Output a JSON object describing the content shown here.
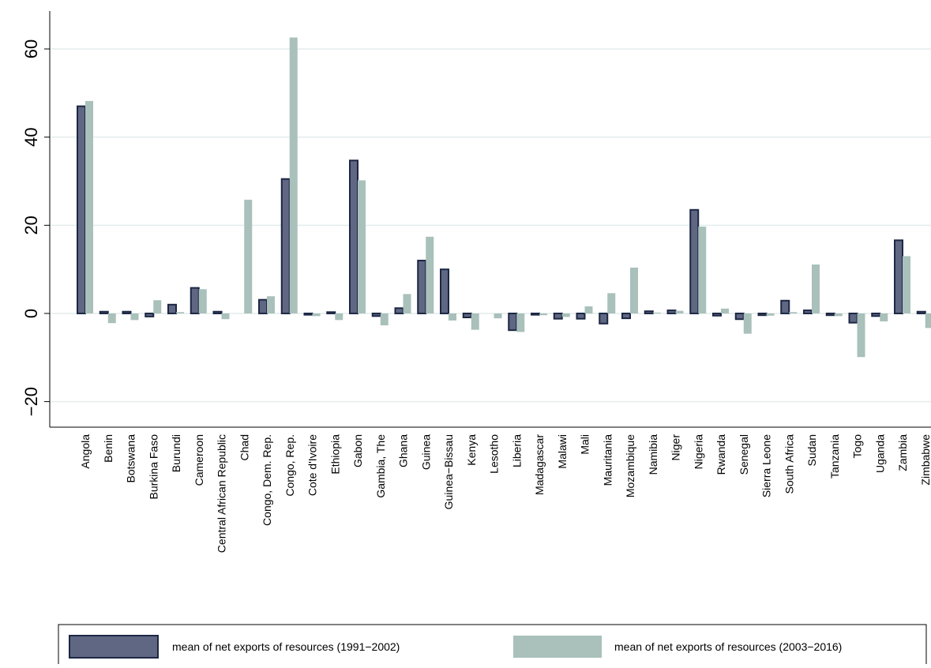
{
  "chart_data": {
    "type": "bar",
    "categories": [
      "Angola",
      "Benin",
      "Botswana",
      "Burkina Faso",
      "Burundi",
      "Cameroon",
      "Central African Republic",
      "Chad",
      "Congo, Dem. Rep.",
      "Congo, Rep.",
      "Cote d'Ivoire",
      "Ethiopia",
      "Gabon",
      "Gambia, The",
      "Ghana",
      "Guinea",
      "Guinea−Bissau",
      "Kenya",
      "Lesotho",
      "Liberia",
      "Madagascar",
      "Malawi",
      "Mali",
      "Mauritania",
      "Mozambique",
      "Namibia",
      "Niger",
      "Nigeria",
      "Rwanda",
      "Senegal",
      "Sierra Leone",
      "South Africa",
      "Sudan",
      "Tanzania",
      "Togo",
      "Uganda",
      "Zambia",
      "Zimbabwe"
    ],
    "series": [
      {
        "name": "mean of net exports of resources (1991−2002)",
        "color": "#5f6782",
        "values": [
          47,
          0.4,
          0.4,
          -0.7,
          2,
          5.8,
          0.4,
          null,
          3.1,
          30.5,
          -0.3,
          0.3,
          34.7,
          -0.6,
          1.2,
          12,
          10,
          -0.9,
          null,
          -3.8,
          -0.3,
          -1.2,
          -1.2,
          -2.3,
          -1.1,
          0.5,
          0.7,
          23.5,
          -0.5,
          -1.3,
          -0.4,
          2.9,
          0.7,
          -0.4,
          -2.1,
          -0.6,
          16.6,
          0.4
        ]
      },
      {
        "name": "mean of net exports of resources (2003−2016)",
        "color": "#a9c0bb",
        "values": [
          48.2,
          -2.2,
          -1.5,
          3,
          0.3,
          5.5,
          -1.3,
          25.8,
          3.9,
          62.6,
          -0.6,
          -1.5,
          30.2,
          -2.7,
          4.4,
          17.4,
          -1.6,
          -3.7,
          -1.1,
          -4.2,
          -0.4,
          -0.8,
          1.6,
          4.6,
          10.4,
          0.2,
          0.6,
          19.7,
          1.1,
          -4.6,
          -0.5,
          0.3,
          11.1,
          -0.6,
          -9.9,
          -1.8,
          13,
          -3.3
        ]
      }
    ],
    "ylim": [
      -25.8,
      68.6
    ],
    "yticks": [
      {
        "value": -20,
        "label": "−20"
      },
      0,
      20,
      40,
      60
    ],
    "grid": true
  }
}
